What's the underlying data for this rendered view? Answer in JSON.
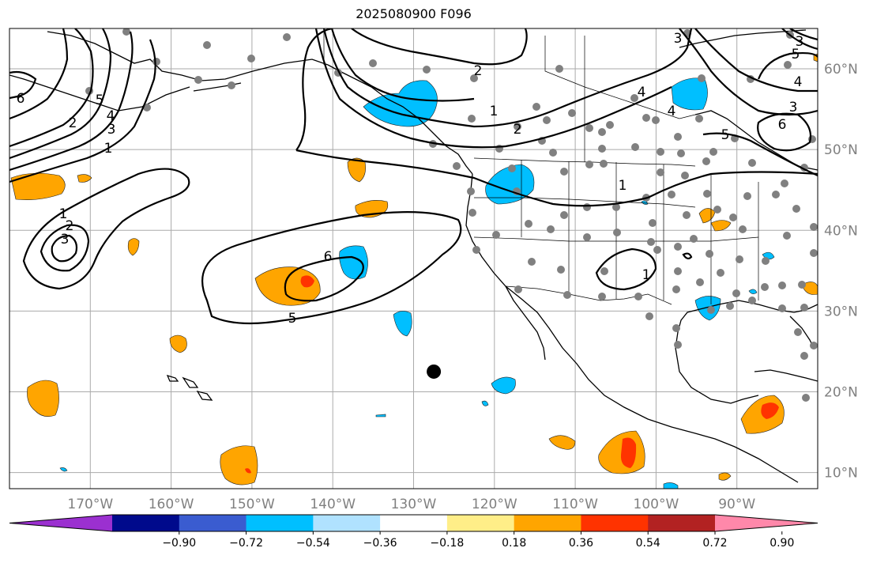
{
  "title": "2025080900 F096",
  "map": {
    "lon_labels": [
      "170°W",
      "160°W",
      "150°W",
      "140°W",
      "130°W",
      "120°W",
      "110°W",
      "100°W",
      "90°W"
    ],
    "lat_labels": [
      "60°N",
      "50°N",
      "40°N",
      "30°N",
      "20°N",
      "10°N"
    ],
    "lon_range": [
      -180,
      -80
    ],
    "lat_range": [
      8,
      65
    ],
    "grid": true
  },
  "colorbar": {
    "ticks": [
      "−0.90",
      "−0.72",
      "−0.54",
      "−0.36",
      "−0.18",
      "0.18",
      "0.36",
      "0.54",
      "0.72",
      "0.90"
    ],
    "colors": [
      "#9b30d0",
      "#000a8c",
      "#3a5cd0",
      "#00bfff",
      "#b0e2ff",
      "#ffffff",
      "#ffee88",
      "#ffa500",
      "#ff3300",
      "#b22222",
      "#ff88aa"
    ]
  },
  "contour_labels": [
    "6",
    "5",
    "4",
    "3",
    "2",
    "1",
    "1",
    "2",
    "3",
    "6",
    "5",
    "2",
    "1",
    "2",
    "1",
    "1",
    "3",
    "5",
    "4",
    "3",
    "6",
    "5",
    "4",
    "4",
    "3"
  ],
  "marker": {
    "lon": -127.5,
    "lat": 22.5
  }
}
